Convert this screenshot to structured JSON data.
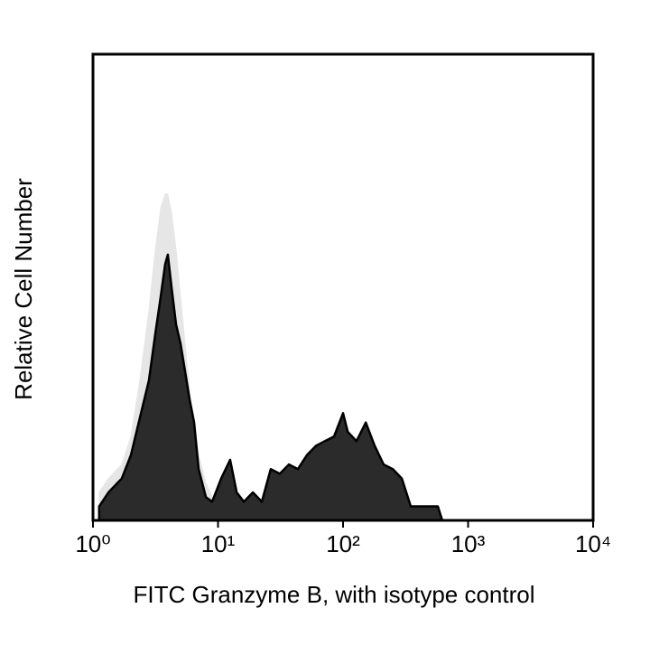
{
  "chart_data": {
    "type": "histogram-area",
    "xlabel": "FITC Granzyme B, with isotype control",
    "ylabel": "Relative Cell Number",
    "xscale": "log",
    "xlim": [
      1,
      10000
    ],
    "xticks": [
      {
        "value": 1,
        "label": "10⁰"
      },
      {
        "value": 10,
        "label": "10¹"
      },
      {
        "value": 100,
        "label": "10²"
      },
      {
        "value": 1000,
        "label": "10³"
      },
      {
        "value": 10000,
        "label": "10⁴"
      }
    ],
    "ylim": [
      0,
      100
    ],
    "x": [
      1.12,
      1.33,
      1.7,
      2.01,
      2.37,
      2.8,
      3.15,
      3.48,
      3.78,
      3.97,
      4.25,
      4.62,
      5.01,
      5.45,
      5.92,
      6.44,
      7.0,
      8.0,
      8.98,
      10.6,
      12.5,
      14.1,
      16.1,
      19.0,
      22.4,
      26.4,
      31.2,
      36.9,
      43.5,
      51.4,
      60.7,
      71.7,
      84.7,
      100,
      109,
      128,
      152,
      179,
      211,
      250,
      295,
      348,
      447,
      573,
      622
    ],
    "series": [
      {
        "color": "#e6e6e6",
        "values": [
          6,
          9,
          12,
          18,
          30,
          45,
          58,
          67,
          70,
          70,
          66,
          58,
          48,
          38,
          28,
          20,
          14,
          8,
          5,
          4,
          5,
          4,
          4,
          4,
          3,
          1,
          0,
          0,
          0,
          0,
          0,
          0,
          0,
          0,
          0,
          0,
          0,
          0,
          0,
          0,
          0,
          0,
          0,
          0,
          0
        ]
      },
      {
        "color": "#2b2b2b",
        "values": [
          3,
          6,
          9,
          14,
          22,
          30,
          40,
          48,
          55,
          57,
          50,
          42,
          38,
          32,
          26,
          21,
          11,
          5,
          4,
          9,
          13,
          6,
          4,
          6,
          4,
          11,
          10,
          12,
          11,
          14,
          16,
          17,
          18,
          23,
          19,
          17,
          21,
          16,
          12,
          11,
          9,
          3,
          3,
          3,
          0
        ]
      }
    ]
  }
}
